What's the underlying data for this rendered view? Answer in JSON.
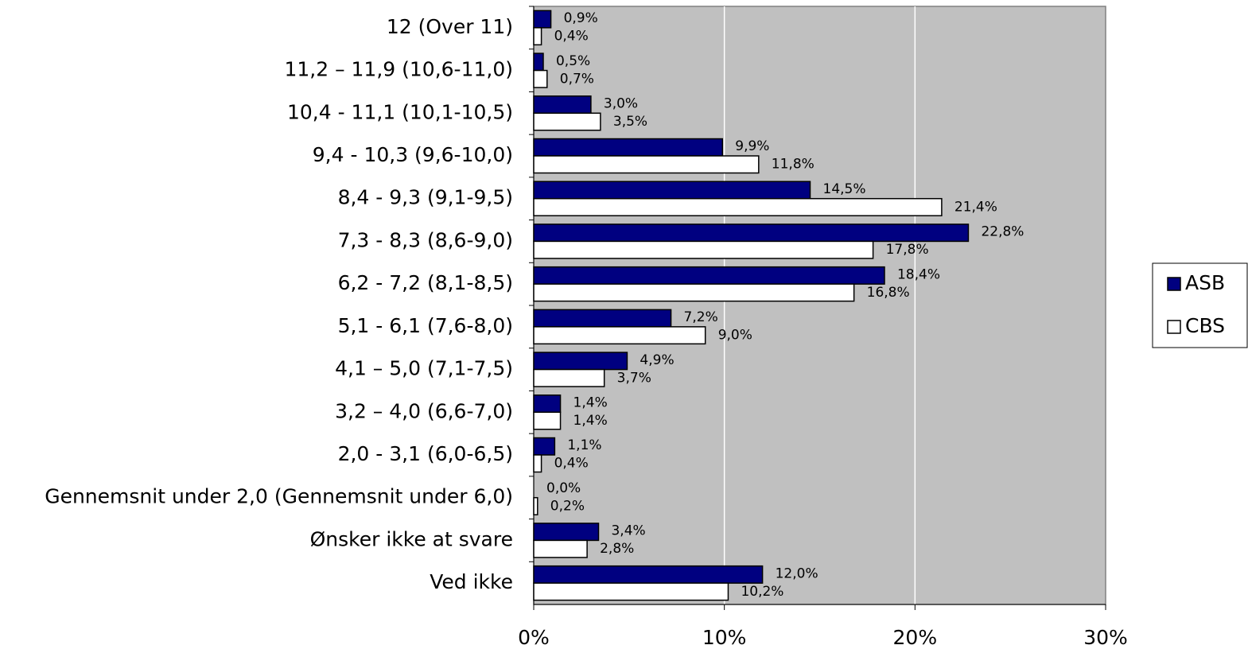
{
  "chart_data": {
    "type": "hbar",
    "categories": [
      "12 (Over 11)",
      "11,2 – 11,9 (10,6-11,0)",
      "10,4 - 11,1 (10,1-10,5)",
      "9,4 - 10,3 (9,6-10,0)",
      "8,4 - 9,3 (9,1-9,5)",
      "7,3 - 8,3 (8,6-9,0)",
      "6,2 - 7,2 (8,1-8,5)",
      "5,1 - 6,1 (7,6-8,0)",
      "4,1 – 5,0 (7,1-7,5)",
      "3,2 – 4,0 (6,6-7,0)",
      "2,0 - 3,1 (6,0-6,5)",
      "Gennemsnit under 2,0 (Gennemsnit under 6,0)",
      "Ønsker ikke at svare",
      "Ved ikke"
    ],
    "series": [
      {
        "name": "ASB",
        "color": "#000080",
        "values": [
          0.9,
          0.5,
          3.0,
          9.9,
          14.5,
          22.8,
          18.4,
          7.2,
          4.9,
          1.4,
          1.1,
          0.0,
          3.4,
          12.0
        ],
        "value_labels": [
          "0,9%",
          "0,5%",
          "3,0%",
          "9,9%",
          "14,5%",
          "22,8%",
          "18,4%",
          "7,2%",
          "4,9%",
          "1,4%",
          "1,1%",
          "0,0%",
          "3,4%",
          "12,0%"
        ]
      },
      {
        "name": "CBS",
        "color": "#ffffff",
        "values": [
          0.4,
          0.7,
          3.5,
          11.8,
          21.4,
          17.8,
          16.8,
          9.0,
          3.7,
          1.4,
          0.4,
          0.2,
          2.8,
          10.2
        ],
        "value_labels": [
          "0,4%",
          "0,7%",
          "3,5%",
          "11,8%",
          "21,4%",
          "17,8%",
          "16,8%",
          "9,0%",
          "3,7%",
          "1,4%",
          "0,4%",
          "0,2%",
          "2,8%",
          "10,2%"
        ]
      }
    ],
    "xlim": [
      0,
      30
    ],
    "xticks": [
      {
        "value": 0,
        "label": "0%"
      },
      {
        "value": 10,
        "label": "10%"
      },
      {
        "value": 20,
        "label": "20%"
      },
      {
        "value": 30,
        "label": "30%"
      }
    ],
    "grid": true,
    "legend": "right"
  }
}
